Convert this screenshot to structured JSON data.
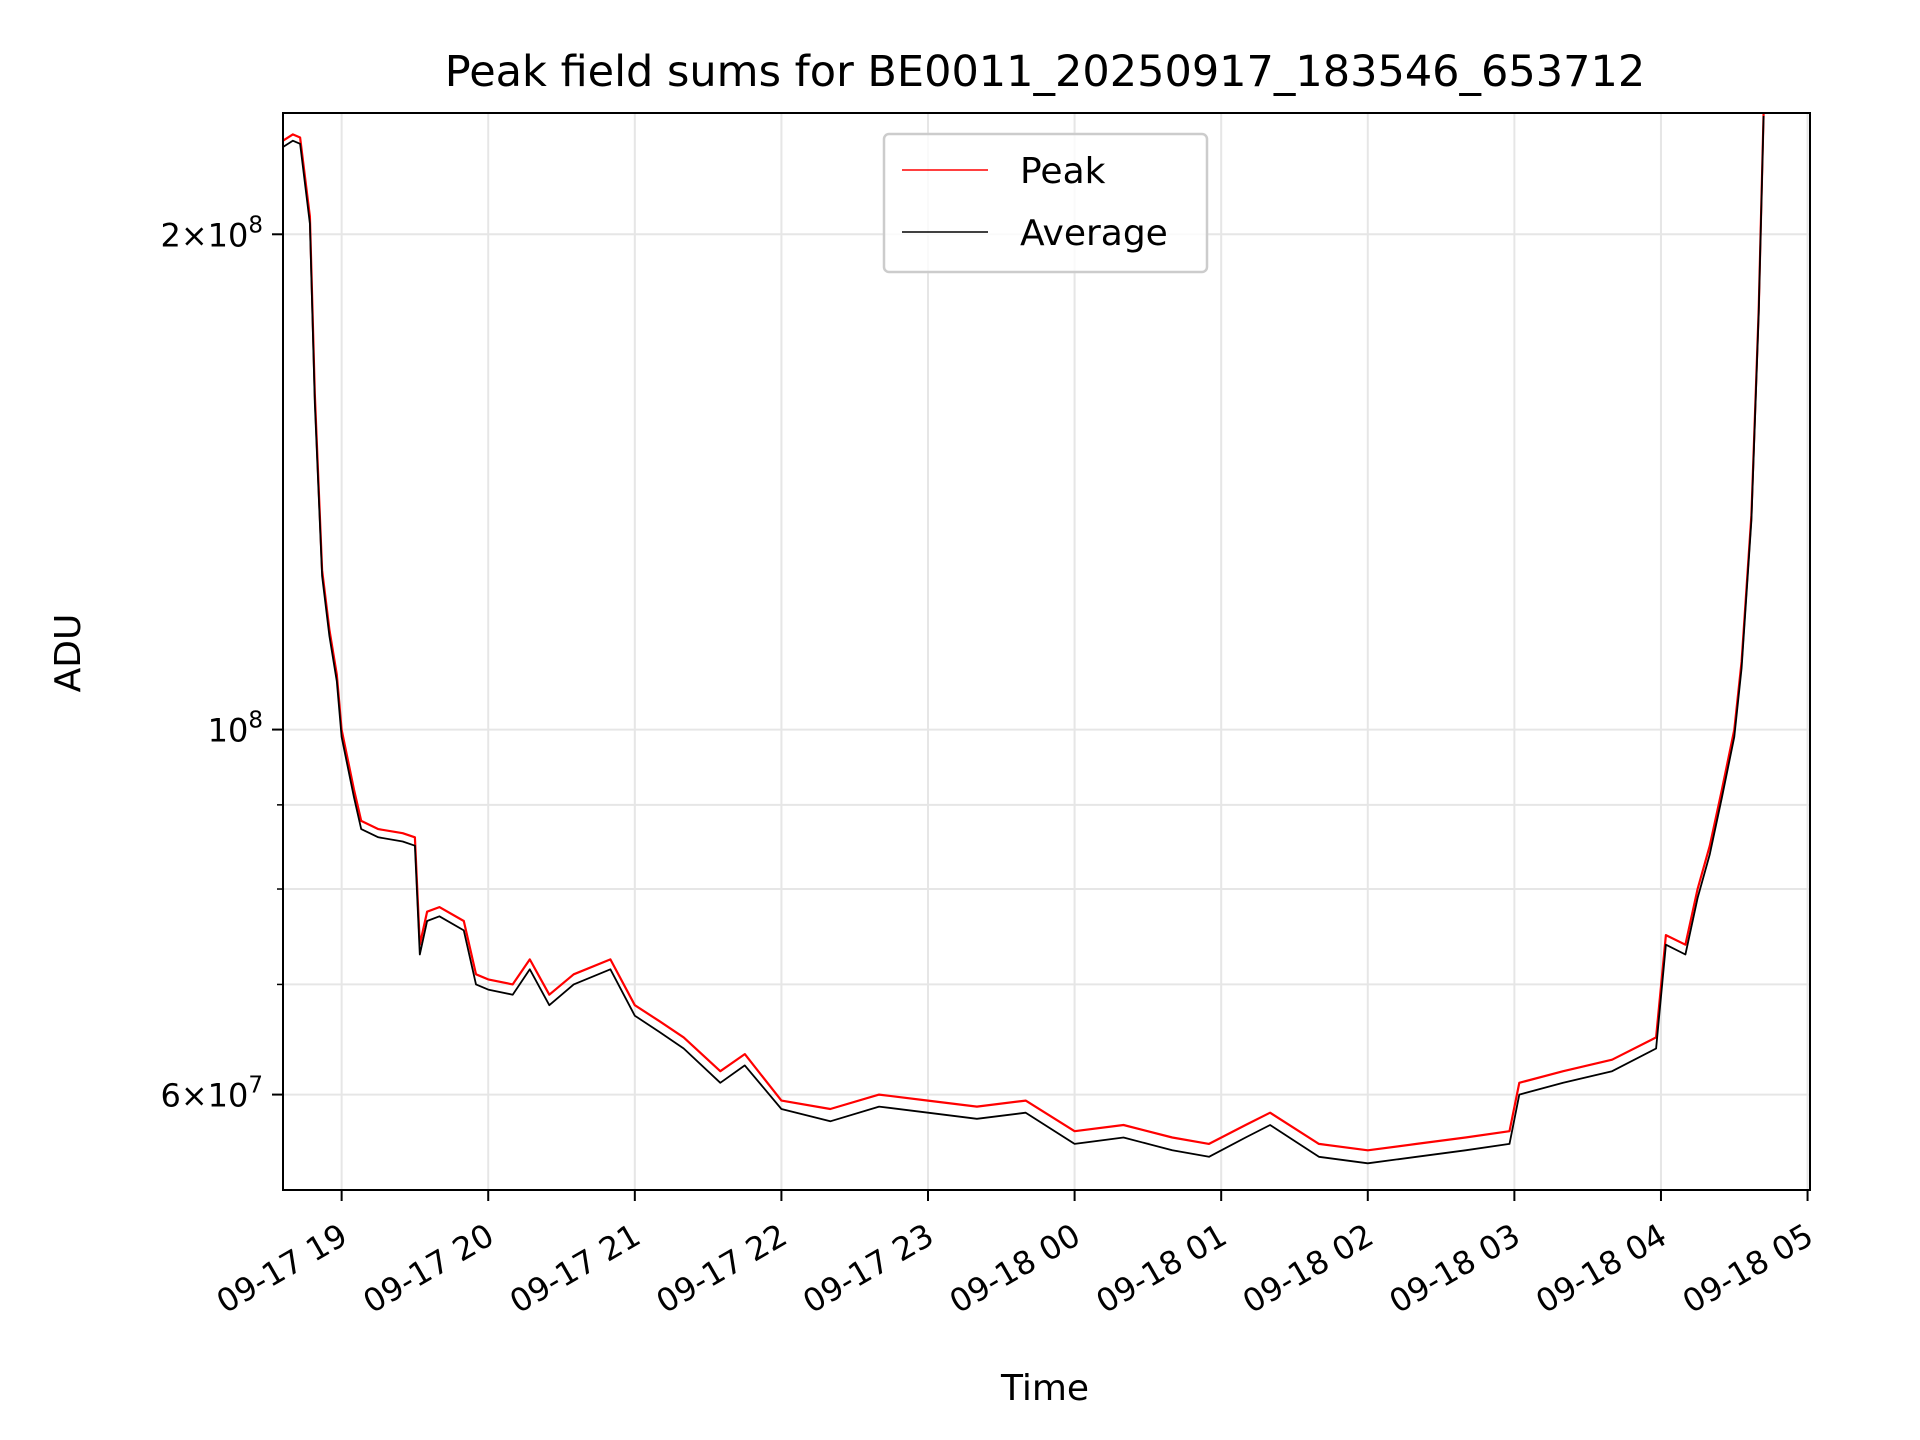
{
  "chart_data": {
    "type": "line",
    "title": "Peak field sums for BE0011_20250917_183546_653712",
    "xlabel": "Time",
    "ylabel": "ADU",
    "yscale": "log",
    "xlim": [
      "2025-09-17 18:36",
      "2025-09-18 05:01"
    ],
    "ylim": [
      52500000,
      237000000
    ],
    "x_tick_labels": [
      "09-17 19",
      "09-17 20",
      "09-17 21",
      "09-17 22",
      "09-17 23",
      "09-18 00",
      "09-18 01",
      "09-18 02",
      "09-18 03",
      "09-18 04",
      "09-18 05"
    ],
    "y_major_ticks": [
      {
        "value": 60000000,
        "mantissa": "6",
        "exp": "7"
      },
      {
        "value": 100000000,
        "mantissa": "",
        "exp": "8"
      },
      {
        "value": 200000000,
        "mantissa": "2",
        "exp": "8"
      }
    ],
    "y_minor_grid": [
      70000000,
      80000000,
      90000000
    ],
    "grid": true,
    "legend_position": "upper-center",
    "x": [
      "2025-09-17 18:36",
      "2025-09-17 18:40",
      "2025-09-17 18:43",
      "2025-09-17 18:47",
      "2025-09-17 18:49",
      "2025-09-17 18:52",
      "2025-09-17 18:55",
      "2025-09-17 18:58",
      "2025-09-17 19:00",
      "2025-09-17 19:05",
      "2025-09-17 19:08",
      "2025-09-17 19:15",
      "2025-09-17 19:25",
      "2025-09-17 19:30",
      "2025-09-17 19:32",
      "2025-09-17 19:35",
      "2025-09-17 19:40",
      "2025-09-17 19:50",
      "2025-09-17 19:55",
      "2025-09-17 20:00",
      "2025-09-17 20:10",
      "2025-09-17 20:17",
      "2025-09-17 20:25",
      "2025-09-17 20:35",
      "2025-09-17 20:50",
      "2025-09-17 21:00",
      "2025-09-17 21:10",
      "2025-09-17 21:20",
      "2025-09-17 21:35",
      "2025-09-17 21:45",
      "2025-09-17 22:00",
      "2025-09-17 22:20",
      "2025-09-17 22:40",
      "2025-09-17 23:00",
      "2025-09-17 23:20",
      "2025-09-17 23:40",
      "2025-09-18 00:00",
      "2025-09-18 00:20",
      "2025-09-18 00:40",
      "2025-09-18 00:55",
      "2025-09-18 01:10",
      "2025-09-18 01:20",
      "2025-09-18 01:40",
      "2025-09-18 02:00",
      "2025-09-18 02:20",
      "2025-09-18 02:40",
      "2025-09-18 02:58",
      "2025-09-18 03:02",
      "2025-09-18 03:20",
      "2025-09-18 03:40",
      "2025-09-18 03:58",
      "2025-09-18 04:02",
      "2025-09-18 04:10",
      "2025-09-18 04:15",
      "2025-09-18 04:20",
      "2025-09-18 04:25",
      "2025-09-18 04:30",
      "2025-09-18 04:33",
      "2025-09-18 04:37",
      "2025-09-18 04:40",
      "2025-09-18 04:42"
    ],
    "series": [
      {
        "name": "Peak",
        "color": "#ff0000",
        "values": [
          228000000,
          230000000,
          229000000,
          205000000,
          160000000,
          125000000,
          115000000,
          108000000,
          100000000,
          92000000,
          88000000,
          87000000,
          86500000,
          86000000,
          74000000,
          77500000,
          78000000,
          76500000,
          71000000,
          70500000,
          70000000,
          72500000,
          69000000,
          71000000,
          72500000,
          68000000,
          66500000,
          65000000,
          62000000,
          63500000,
          59500000,
          58800000,
          60000000,
          59500000,
          59000000,
          59500000,
          57000000,
          57500000,
          56500000,
          56000000,
          57500000,
          58500000,
          56000000,
          55500000,
          56000000,
          56500000,
          57000000,
          61000000,
          62000000,
          63000000,
          65000000,
          75000000,
          74000000,
          80000000,
          85000000,
          92000000,
          100000000,
          110000000,
          135000000,
          180000000,
          237000000
        ]
      },
      {
        "name": "Average",
        "color": "#000000",
        "values": [
          226000000,
          228000000,
          227000000,
          203000000,
          158000000,
          124000000,
          114000000,
          107000000,
          99000000,
          91000000,
          87000000,
          86000000,
          85500000,
          85000000,
          73000000,
          76500000,
          77000000,
          75500000,
          70000000,
          69500000,
          69000000,
          71500000,
          68000000,
          70000000,
          71500000,
          67000000,
          65500000,
          64000000,
          61000000,
          62500000,
          58800000,
          57800000,
          59000000,
          58500000,
          58000000,
          58500000,
          56000000,
          56500000,
          55500000,
          55000000,
          56500000,
          57500000,
          55000000,
          54500000,
          55000000,
          55500000,
          56000000,
          60000000,
          61000000,
          62000000,
          64000000,
          74000000,
          73000000,
          79000000,
          84000000,
          91000000,
          99000000,
          109000000,
          134000000,
          179000000,
          236000000
        ]
      }
    ]
  },
  "colors": {
    "peak": "#ff0000",
    "average": "#000000",
    "grid": "#e6e6e6",
    "axes": "#000000"
  }
}
